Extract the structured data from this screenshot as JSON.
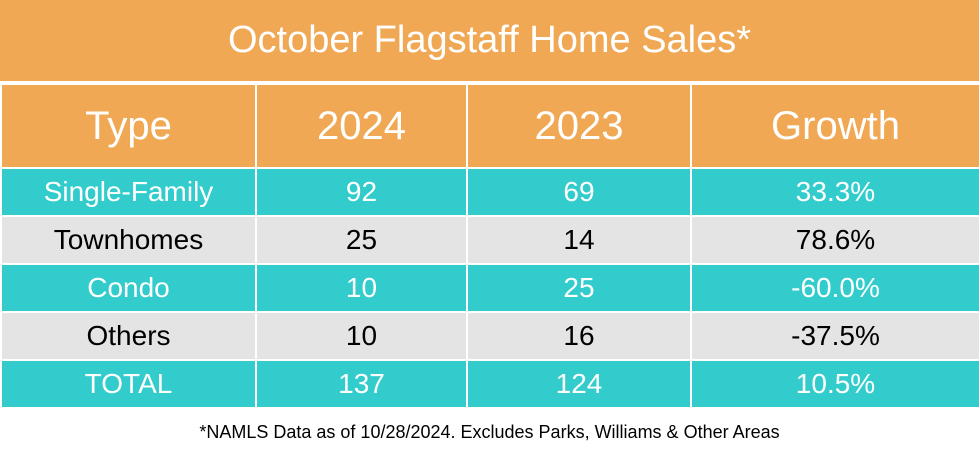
{
  "title": "October Flagstaff Home Sales*",
  "table": {
    "header": [
      "Type",
      "2024",
      "2023",
      "Growth"
    ],
    "rows": [
      [
        "Single-Family",
        "92",
        "69",
        "33.3%"
      ],
      [
        "Townhomes",
        "25",
        "14",
        "78.6%"
      ],
      [
        "Condo",
        "10",
        "25",
        "-60.0%"
      ],
      [
        "Others",
        "10",
        "16",
        "-37.5%"
      ],
      [
        "TOTAL",
        "137",
        "124",
        "10.5%"
      ]
    ]
  },
  "footnote": "*NAMLS Data as of 10/28/2024. Excludes Parks, Williams & Other Areas"
}
